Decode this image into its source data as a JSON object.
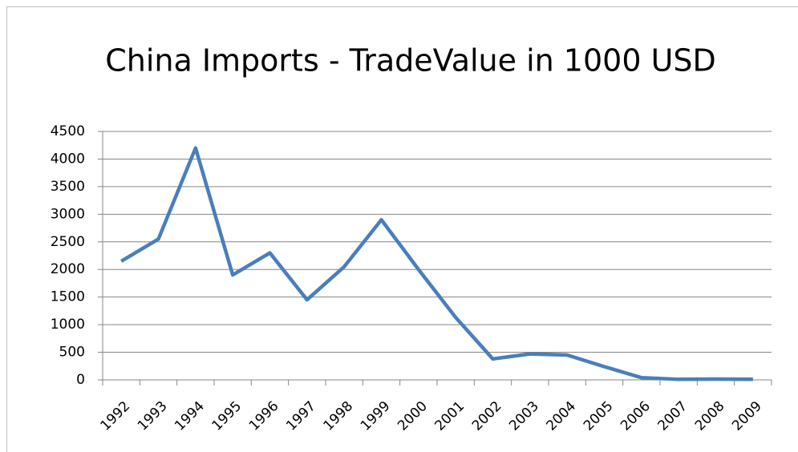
{
  "chart_data": {
    "type": "line",
    "title": "China Imports - TradeValue in 1000 USD",
    "categories": [
      "1992",
      "1993",
      "1994",
      "1995",
      "1996",
      "1997",
      "1998",
      "1999",
      "2000",
      "2001",
      "2002",
      "2003",
      "2004",
      "2005",
      "2006",
      "2007",
      "2008",
      "2009"
    ],
    "series": [
      {
        "name": "TradeValue",
        "color": "#4a7ebb",
        "values": [
          2150,
          2550,
          4200,
          1900,
          2300,
          1450,
          2050,
          2900,
          2000,
          1130,
          380,
          470,
          450,
          240,
          40,
          10,
          15,
          10
        ]
      }
    ],
    "ylim": [
      0,
      4500
    ],
    "yticks": [
      0,
      500,
      1000,
      1500,
      2000,
      2500,
      3000,
      3500,
      4000,
      4500
    ],
    "grid": true
  }
}
